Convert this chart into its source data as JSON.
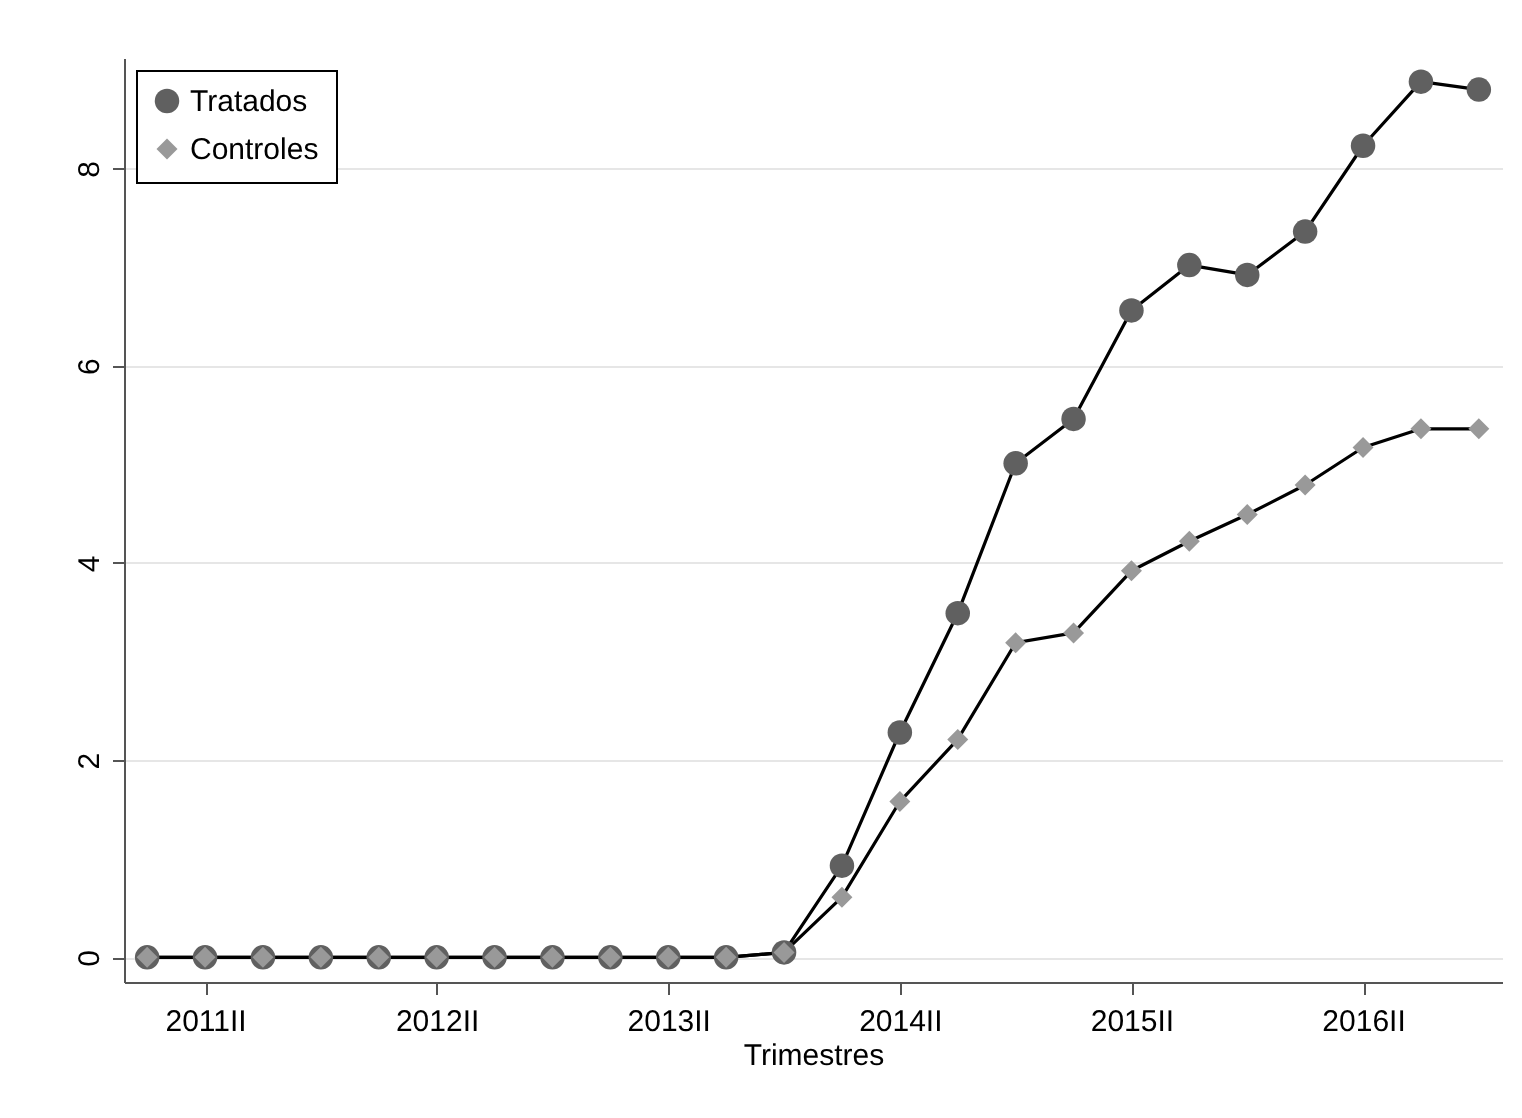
{
  "chart_data": {
    "type": "line",
    "xlabel": "Trimestres",
    "x": [
      2011,
      2011.25,
      2011.5,
      2011.75,
      2012,
      2012.25,
      2012.5,
      2012.75,
      2013,
      2013.25,
      2013.5,
      2013.75,
      2014,
      2014.25,
      2014.5,
      2014.75,
      2015,
      2015.25,
      2015.5,
      2015.75,
      2016,
      2016.25,
      2016.5,
      2016.75
    ],
    "series": [
      {
        "name": "Tratados",
        "color": "#606060",
        "marker": "circle",
        "values": [
          0,
          0,
          0,
          0,
          0,
          0,
          0,
          0,
          0,
          0,
          0,
          0.05,
          0.93,
          2.28,
          3.49,
          5.01,
          5.46,
          6.56,
          7.02,
          6.92,
          7.36,
          8.23,
          8.88,
          8.8
        ]
      },
      {
        "name": "Controles",
        "color": "#999999",
        "marker": "diamond",
        "values": [
          0,
          0,
          0,
          0,
          0,
          0,
          0,
          0,
          0,
          0,
          0,
          0.05,
          0.61,
          1.58,
          2.21,
          3.19,
          3.29,
          3.92,
          4.22,
          4.49,
          4.79,
          5.17,
          5.36,
          5.36
        ]
      }
    ],
    "xlim": [
      2010.9,
      2016.85
    ],
    "xticks": [
      {
        "value": 2011.25,
        "label": "2011II"
      },
      {
        "value": 2012.25,
        "label": "2012II"
      },
      {
        "value": 2013.25,
        "label": "2013II"
      },
      {
        "value": 2014.25,
        "label": "2014II"
      },
      {
        "value": 2015.25,
        "label": "2015II"
      },
      {
        "value": 2016.25,
        "label": "2016II"
      }
    ],
    "ylim": [
      -0.25,
      9.12
    ],
    "yticks": [
      0,
      2,
      4,
      6,
      8
    ],
    "grid": "y",
    "legend": "top left",
    "line_style": "solid"
  }
}
